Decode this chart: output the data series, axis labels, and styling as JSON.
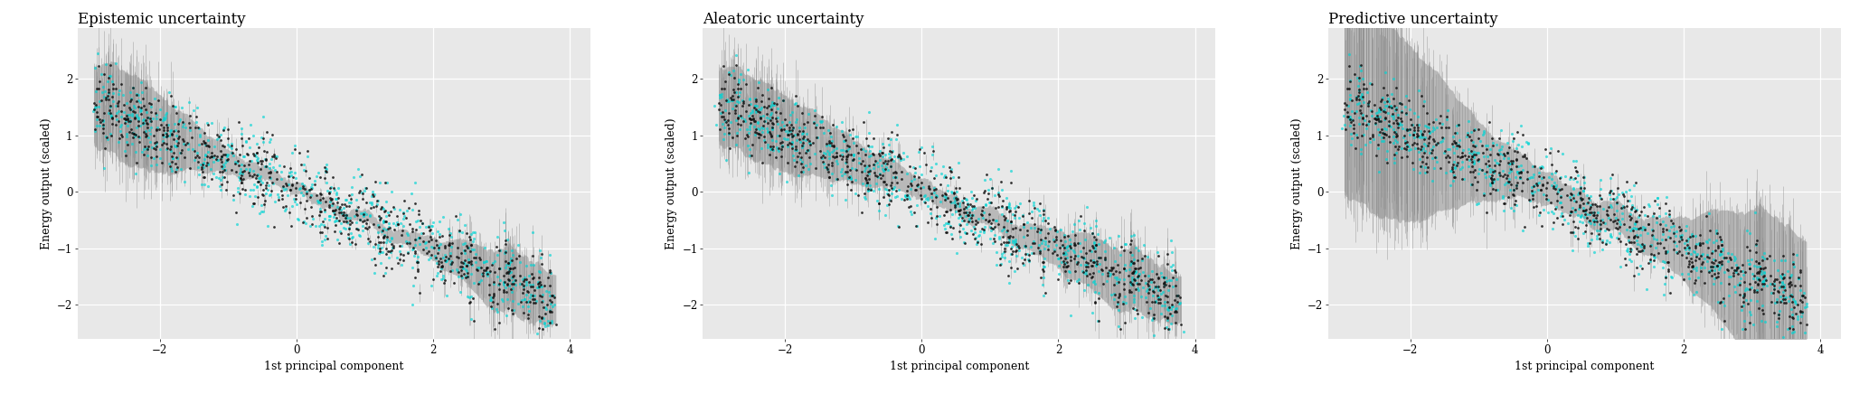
{
  "titles": [
    "Epistemic uncertainty",
    "Aleatoric uncertainty",
    "Predictive uncertainty"
  ],
  "xlabel": "1st principal component",
  "ylabel": "Energy output (scaled)",
  "xlim": [
    -3.2,
    4.3
  ],
  "ylim": [
    -2.6,
    2.9
  ],
  "xticks": [
    -2,
    0,
    2,
    4
  ],
  "yticks": [
    -2,
    -1,
    0,
    1,
    2
  ],
  "bg_color": "#e8e8e8",
  "grid_color": "#ffffff",
  "cyan_color": "#00d4d4",
  "black_color": "#111111",
  "ribbon_color": "#aaaaaa",
  "n_points": 768,
  "seed": 42,
  "slope": -0.52,
  "intercept": 0.0,
  "x_noise": 0.0,
  "y_noise": 0.32,
  "title_fontsize": 12,
  "label_fontsize": 9,
  "tick_fontsize": 8.5,
  "uncertainty_scales": [
    0.18,
    0.16,
    0.3
  ]
}
